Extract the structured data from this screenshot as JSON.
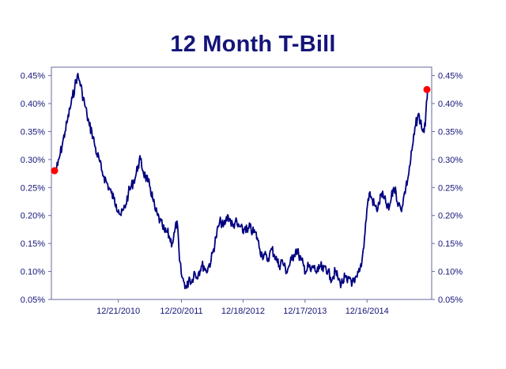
{
  "chart_data": {
    "type": "line",
    "title": "12 Month T-Bill",
    "xlabel": "",
    "ylabel": "",
    "ylim": [
      0.05,
      0.465
    ],
    "y_ticks": [
      0.05,
      0.1,
      0.15,
      0.2,
      0.25,
      0.3,
      0.35,
      0.4,
      0.45
    ],
    "y_tick_labels": [
      "0.05%",
      "0.10%",
      "0.15%",
      "0.20%",
      "0.25%",
      "0.30%",
      "0.35%",
      "0.40%",
      "0.45%"
    ],
    "x_tick_labels": [
      "12/21/2010",
      "12/20/2011",
      "12/18/2012",
      "12/17/2013",
      "12/16/2014"
    ],
    "grid": false,
    "colors": {
      "line": "#000080",
      "marker": "#ff0000",
      "text": "#14147a",
      "axis": "#6a6aa0"
    },
    "series": [
      {
        "values": [
          0.28,
          0.29,
          0.31,
          0.33,
          0.35,
          0.37,
          0.39,
          0.41,
          0.43,
          0.45,
          0.44,
          0.42,
          0.4,
          0.38,
          0.36,
          0.35,
          0.33,
          0.31,
          0.3,
          0.28,
          0.27,
          0.26,
          0.25,
          0.24,
          0.23,
          0.22,
          0.21,
          0.2,
          0.21,
          0.22,
          0.24,
          0.25,
          0.26,
          0.27,
          0.29,
          0.3,
          0.28,
          0.27,
          0.26,
          0.25,
          0.23,
          0.21,
          0.2,
          0.19,
          0.18,
          0.17,
          0.17,
          0.16,
          0.15,
          0.17,
          0.19,
          0.12,
          0.09,
          0.08,
          0.07,
          0.09,
          0.08,
          0.1,
          0.09,
          0.1,
          0.11,
          0.11,
          0.1,
          0.11,
          0.12,
          0.14,
          0.16,
          0.18,
          0.19,
          0.18,
          0.19,
          0.2,
          0.19,
          0.18,
          0.19,
          0.18,
          0.18,
          0.17,
          0.18,
          0.17,
          0.18,
          0.17,
          0.17,
          0.16,
          0.14,
          0.13,
          0.13,
          0.12,
          0.13,
          0.14,
          0.13,
          0.12,
          0.11,
          0.12,
          0.11,
          0.1,
          0.11,
          0.12,
          0.13,
          0.14,
          0.13,
          0.12,
          0.11,
          0.1,
          0.11,
          0.1,
          0.11,
          0.1,
          0.1,
          0.11,
          0.1,
          0.11,
          0.1,
          0.09,
          0.09,
          0.1,
          0.09,
          0.08,
          0.08,
          0.09,
          0.08,
          0.09,
          0.08,
          0.08,
          0.09,
          0.1,
          0.12,
          0.16,
          0.21,
          0.24,
          0.23,
          0.22,
          0.21,
          0.22,
          0.24,
          0.23,
          0.22,
          0.21,
          0.23,
          0.25,
          0.24,
          0.22,
          0.21,
          0.23,
          0.25,
          0.27,
          0.3,
          0.33,
          0.36,
          0.38,
          0.37,
          0.35,
          0.36,
          0.43
        ]
      }
    ],
    "x_tick_fractions": [
      0.176,
      0.342,
      0.504,
      0.667,
      0.83
    ],
    "endpoints": {
      "start": 0.28,
      "end": 0.425
    }
  }
}
